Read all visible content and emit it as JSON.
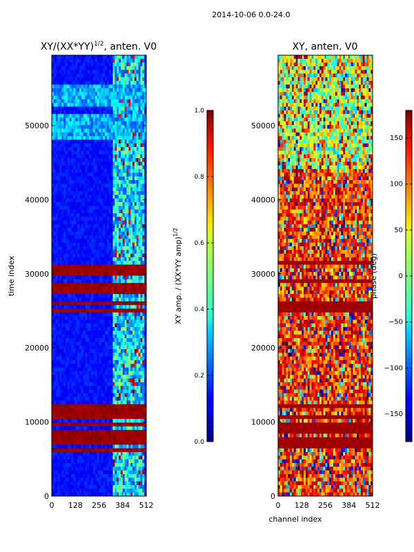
{
  "suptitle": "2014-10-06 0.0-24.0",
  "chart_data": [
    {
      "type": "heatmap",
      "title": "XY/(XX*YY)^{1/2}, anten. V0",
      "title_parts": {
        "base": "XY/(XX*YY)",
        "sup": "1/2",
        "tail": ", anten. V0"
      },
      "xlabel": "",
      "ylabel": "time index",
      "xlim": [
        0,
        512
      ],
      "ylim": [
        0,
        59500
      ],
      "xticks": [
        "0",
        "128",
        "256",
        "384",
        "512"
      ],
      "xtick_values": [
        0,
        128,
        256,
        384,
        512
      ],
      "yticks": [
        "0",
        "10000",
        "20000",
        "30000",
        "40000",
        "50000"
      ],
      "ytick_values": [
        0,
        10000,
        20000,
        30000,
        40000,
        50000
      ],
      "colormap": "jet",
      "colorbar": {
        "label": "XY amp. / (XX*YY amp)^{1/2}",
        "label_parts": {
          "base": "XY amp. / (XX*YY amp)",
          "sup": "1/2"
        },
        "range": [
          0.0,
          1.0
        ],
        "ticks": [
          "0.0",
          "0.2",
          "0.4",
          "0.6",
          "0.8",
          "1.0"
        ],
        "tick_values": [
          0.0,
          0.2,
          0.4,
          0.6,
          0.8,
          1.0
        ]
      },
      "features": {
        "baseline_value": 0.1,
        "bright_channel_range": [
          330,
          500
        ],
        "saturated_time_bands": [
          [
            6000,
            12300
          ],
          [
            24700,
            32000
          ]
        ],
        "striped_regions": [
          [
            48000,
            51500
          ],
          [
            52500,
            55500
          ]
        ]
      }
    },
    {
      "type": "heatmap",
      "title": "XY, anten. V0",
      "xlabel": "channel index",
      "ylabel": "",
      "xlim": [
        0,
        512
      ],
      "ylim": [
        0,
        59500
      ],
      "xticks": [
        "0",
        "128",
        "256",
        "384",
        "512"
      ],
      "xtick_values": [
        0,
        128,
        256,
        384,
        512
      ],
      "yticks": [
        "0",
        "10000",
        "20000",
        "30000",
        "40000",
        "50000"
      ],
      "ytick_values": [
        0,
        10000,
        20000,
        30000,
        40000,
        50000
      ],
      "colormap": "jet",
      "colorbar": {
        "label": "phase (deg)",
        "range": [
          -180,
          180
        ],
        "ticks": [
          "−150",
          "−100",
          "−50",
          "0",
          "50",
          "100",
          "150"
        ],
        "tick_values": [
          -150,
          -100,
          -50,
          0,
          50,
          100,
          150
        ]
      },
      "features": {
        "dominant_phase_range": [
          60,
          180
        ],
        "saturated_time_bands": [
          [
            6000,
            12300
          ],
          [
            24700,
            32000
          ]
        ]
      }
    }
  ]
}
